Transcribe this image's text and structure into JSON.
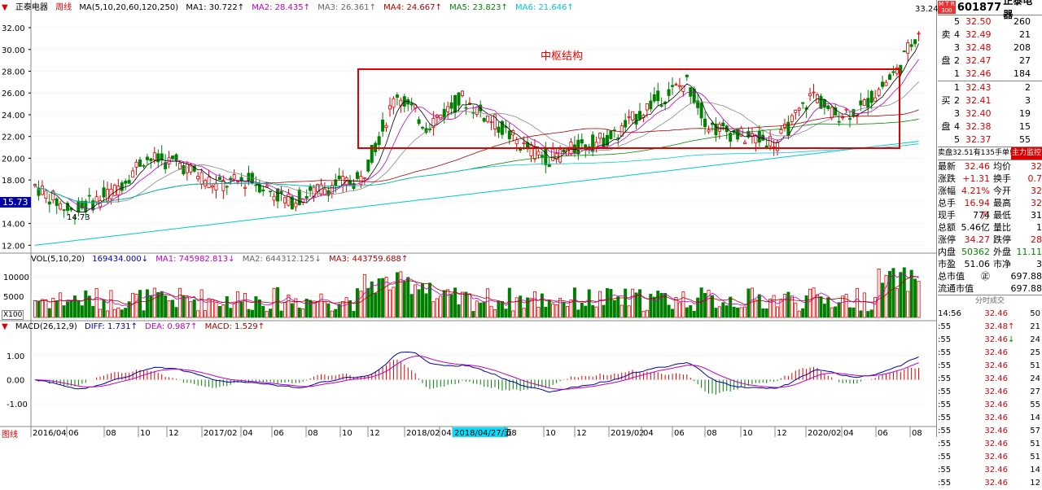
{
  "header": {
    "stock_name": "正泰电器",
    "period": "周线",
    "ma_title": "MA(5,10,20,60,120,250)",
    "ma1": "MA1: 30.722↑",
    "ma2": "MA2: 28.435↑",
    "ma3": "MA3: 26.361↑",
    "ma4": "MA4: 24.667↑",
    "ma5": "MA5: 23.823↑",
    "ma6": "MA6: 21.646↑"
  },
  "vol_header": {
    "title": "VOL(5,10,20)",
    "vol": "169434.000↓",
    "ma1": "MA1: 745982.813↓",
    "ma2": "MA2: 644312.125↓",
    "ma3": "MA3: 443759.688↑"
  },
  "macd_header": {
    "title": "MACD(26,12,9)",
    "diff": "DIFF: 1.731↑",
    "dea": "DEA: 0.987↑",
    "macd": "MACD: 1.529↑"
  },
  "annotation": "中枢结构",
  "price_axis": [
    "32.00",
    "30.00",
    "28.00",
    "26.00",
    "24.00",
    "22.00",
    "20.00",
    "18.00",
    "16.00",
    "14.00",
    "12.00"
  ],
  "vol_axis": [
    "10000",
    "5000"
  ],
  "vol_unit": "X100",
  "macd_axis": [
    "1.00",
    "0.00",
    "-1.00"
  ],
  "current_price_label": "15.73",
  "low_label": "14.73",
  "high_label": "33.24",
  "x_ticks": [
    "2016/04",
    "06",
    "08",
    "10",
    "12",
    "2017/02",
    "04",
    "06",
    "08",
    "10",
    "12",
    "2018/02",
    "04",
    "2018/04/27/五",
    "08",
    "10",
    "12",
    "2019/02",
    "04",
    "06",
    "08",
    "10",
    "12",
    "2020/02",
    "04",
    "06",
    "08"
  ],
  "bottom_tab": "图线",
  "quote": {
    "logo_lines": [
      "M T R",
      "300"
    ],
    "code": "601877",
    "name": "正泰电器",
    "sell_label": [
      "卖",
      "盘"
    ],
    "buy_label": [
      "买",
      "盘"
    ],
    "asks": [
      {
        "lvl": "5",
        "price": "32.50",
        "vol": "260"
      },
      {
        "lvl": "4",
        "price": "32.49",
        "vol": "21"
      },
      {
        "lvl": "3",
        "price": "32.48",
        "vol": "208"
      },
      {
        "lvl": "2",
        "price": "32.47",
        "vol": "27"
      },
      {
        "lvl": "1",
        "price": "32.46",
        "vol": "184"
      }
    ],
    "bids": [
      {
        "lvl": "1",
        "price": "32.43",
        "vol": "2"
      },
      {
        "lvl": "2",
        "price": "32.41",
        "vol": "3"
      },
      {
        "lvl": "3",
        "price": "32.40",
        "vol": "19"
      },
      {
        "lvl": "4",
        "price": "32.38",
        "vol": "15"
      },
      {
        "lvl": "5",
        "price": "32.37",
        "vol": "55"
      }
    ],
    "note": "卖盘32.51有135手单!",
    "note_tag": "主力监控",
    "stats": [
      {
        "k": "最新",
        "v": "32.46",
        "k2": "均价",
        "v2": "32"
      },
      {
        "k": "涨跌",
        "v": "+1.31",
        "k2": "换手",
        "v2": "0.7"
      },
      {
        "k": "涨幅",
        "v": "4.21%",
        "k2": "今开",
        "v2": "32"
      },
      {
        "k": "总手",
        "v": "16.94万",
        "k2": "最高",
        "v2": "32"
      },
      {
        "k": "现手",
        "v": "774",
        "k2": "最低",
        "v2": "31"
      },
      {
        "k": "总额",
        "v": "5.46亿",
        "k2": "量比",
        "v2": "1"
      },
      {
        "k": "涨停",
        "v": "34.27",
        "k2": "跌停",
        "v2": "28"
      },
      {
        "k": "内盘",
        "v": "50362",
        "k2": "外盘",
        "v2": "11.11"
      },
      {
        "k": "市盈",
        "v": "51.06㊣",
        "k2": "市净",
        "v2": "3"
      }
    ],
    "mkt_cap_label": "总市值",
    "mkt_cap": "697.88",
    "float_cap_label": "流通市值",
    "float_cap": "697.88",
    "ticks_title": "分时成交",
    "ticks": [
      {
        "t": "14:56",
        "p": "32.46",
        "a": "",
        "n": "50"
      },
      {
        "t": ":55",
        "p": "32.48",
        "a": "↑",
        "n": "21"
      },
      {
        "t": ":55",
        "p": "32.46",
        "a": "↓",
        "n": "24"
      },
      {
        "t": ":55",
        "p": "32.46",
        "a": "",
        "n": "25"
      },
      {
        "t": ":55",
        "p": "32.46",
        "a": "",
        "n": "51"
      },
      {
        "t": ":55",
        "p": "32.46",
        "a": "",
        "n": "24"
      },
      {
        "t": ":55",
        "p": "32.46",
        "a": "",
        "n": "27"
      },
      {
        "t": ":55",
        "p": "32.46",
        "a": "",
        "n": "55"
      },
      {
        "t": ":55",
        "p": "32.46",
        "a": "",
        "n": "14"
      },
      {
        "t": ":55",
        "p": "32.46",
        "a": "",
        "n": "57"
      },
      {
        "t": ":55",
        "p": "32.46",
        "a": "",
        "n": "51"
      },
      {
        "t": ":55",
        "p": "32.46",
        "a": "",
        "n": "51"
      },
      {
        "t": ":55",
        "p": "32.46",
        "a": "",
        "n": "14"
      },
      {
        "t": ":55",
        "p": "32.46",
        "a": "",
        "n": "12"
      }
    ]
  },
  "colors": {
    "up": "#e00000",
    "down": "#008000",
    "ma_cyan": "#00c8d8",
    "box": "#e00000"
  }
}
